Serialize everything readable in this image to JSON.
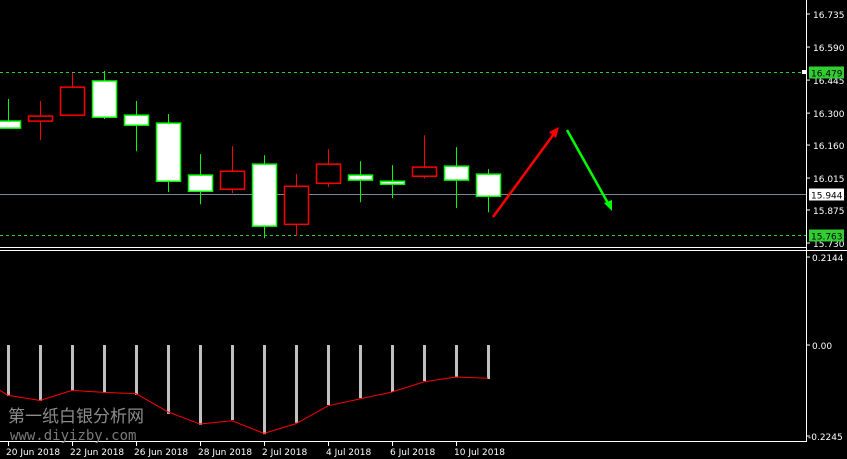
{
  "chart_data": {
    "type": "candlestick",
    "instrument_hint": "",
    "colors": {
      "background": "#000000",
      "bear_border": "#00ff00",
      "bear_fill": "#ffffff",
      "bull_border": "#ff0000",
      "bull_fill": "#000000",
      "axis": "#ffffff",
      "level_line": "#32cd32",
      "bid_line": "#778899",
      "histogram": "#c0c0c0",
      "signal": "#ff0000",
      "arrow_up": "#ff0000",
      "arrow_down": "#00ff00"
    },
    "price_axis": {
      "ylim": [
        15.73,
        16.735
      ],
      "ticks": [
        "16.735",
        "16.590",
        "16.445",
        "16.300",
        "16.160",
        "16.015",
        "15.875",
        "15.730"
      ]
    },
    "levels": [
      {
        "value": 16.479,
        "label": "16.479",
        "style": "dashed",
        "color": "#32cd32"
      },
      {
        "value": 15.763,
        "label": "15.763",
        "style": "dashed",
        "color": "#32cd32"
      },
      {
        "value": 15.944,
        "label": "15.944",
        "style": "solid",
        "color": "#778899"
      }
    ],
    "candles": [
      {
        "date": "20 Jun 2018",
        "open": 16.265,
        "high": 16.362,
        "low": 16.234,
        "close": 16.234
      },
      {
        "date": "21 Jun 2018",
        "open": 16.265,
        "high": 16.353,
        "low": 16.181,
        "close": 16.287
      },
      {
        "date": "22 Jun 2018",
        "open": 16.291,
        "high": 16.476,
        "low": 16.291,
        "close": 16.414
      },
      {
        "date": "25 Jun 2018",
        "open": 16.441,
        "high": 16.485,
        "low": 16.274,
        "close": 16.282
      },
      {
        "date": "26 Jun 2018",
        "open": 16.291,
        "high": 16.353,
        "low": 16.133,
        "close": 16.247
      },
      {
        "date": "27 Jun 2018",
        "open": 16.256,
        "high": 16.296,
        "low": 15.953,
        "close": 16.001
      },
      {
        "date": "28 Jun 2018",
        "open": 16.028,
        "high": 16.12,
        "low": 15.9,
        "close": 15.957
      },
      {
        "date": "29 Jun 2018",
        "open": 15.966,
        "high": 16.155,
        "low": 15.949,
        "close": 16.045
      },
      {
        "date": "2 Jul 2018",
        "open": 16.076,
        "high": 16.115,
        "low": 15.751,
        "close": 15.804
      },
      {
        "date": "3 Jul 2018",
        "open": 15.812,
        "high": 16.032,
        "low": 15.76,
        "close": 15.979
      },
      {
        "date": "4 Jul 2018",
        "open": 15.992,
        "high": 16.142,
        "low": 15.975,
        "close": 16.076
      },
      {
        "date": "5 Jul 2018",
        "open": 16.028,
        "high": 16.089,
        "low": 15.909,
        "close": 16.006
      },
      {
        "date": "6 Jul 2018",
        "open": 16.001,
        "high": 16.072,
        "low": 15.927,
        "close": 15.988
      },
      {
        "date": "9 Jul 2018",
        "open": 16.023,
        "high": 16.203,
        "low": 16.014,
        "close": 16.063
      },
      {
        "date": "10 Jul 2018",
        "open": 16.067,
        "high": 16.151,
        "low": 15.883,
        "close": 16.006
      },
      {
        "date": "11 Jul 2018",
        "open": 16.032,
        "high": 16.054,
        "low": 15.865,
        "close": 15.935
      }
    ],
    "indicator": {
      "ylim": [
        -0.2245,
        0.2144
      ],
      "ticks": [
        "0.2144",
        "0.00",
        "-0.2245"
      ],
      "histogram": [
        -0.126,
        -0.138,
        -0.111,
        -0.118,
        -0.123,
        -0.17,
        -0.197,
        -0.185,
        -0.22,
        -0.192,
        -0.148,
        -0.131,
        -0.116,
        -0.089,
        -0.079,
        -0.084
      ],
      "signal": [
        -0.124,
        -0.137,
        -0.112,
        -0.117,
        -0.12,
        -0.165,
        -0.195,
        -0.187,
        -0.218,
        -0.194,
        -0.15,
        -0.133,
        -0.116,
        -0.091,
        -0.079,
        -0.082
      ]
    },
    "x_tick_labels": [
      "20 Jun 2018",
      "22 Jun 2018",
      "26 Jun 2018",
      "28 Jun 2018",
      "2 Jul 2018",
      "4 Jul 2018",
      "6 Jul 2018",
      "10 Jul 2018"
    ],
    "annotations": [
      {
        "type": "arrow",
        "direction": "up",
        "color": "#ff0000"
      },
      {
        "type": "arrow",
        "direction": "down",
        "color": "#00ff00"
      }
    ]
  },
  "watermark": {
    "line1": "第一纸白银分析网",
    "line2": "www.diyizby.com"
  }
}
